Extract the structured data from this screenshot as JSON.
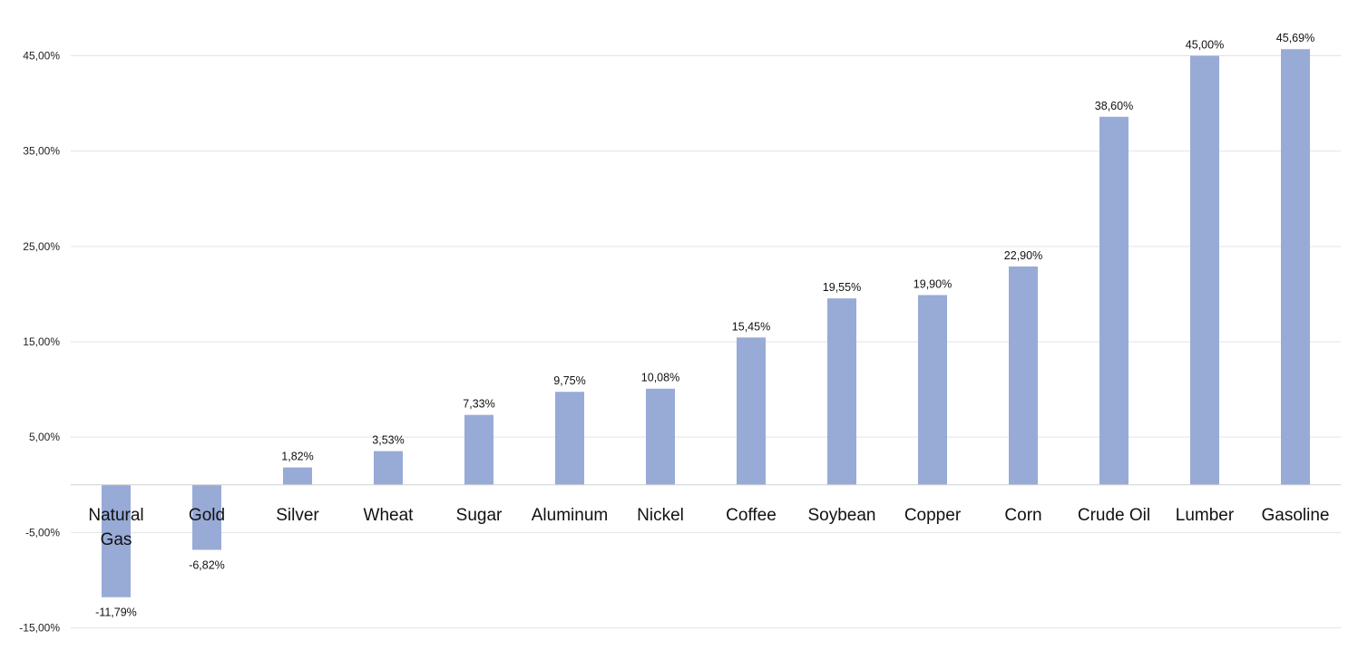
{
  "chart_data": {
    "type": "bar",
    "title": "",
    "xlabel": "",
    "ylabel": "",
    "categories": [
      "Natural Gas",
      "Gold",
      "Silver",
      "Wheat",
      "Sugar",
      "Aluminum",
      "Nickel",
      "Coffee",
      "Soybean",
      "Copper",
      "Corn",
      "Crude Oil",
      "Lumber",
      "Gasoline"
    ],
    "values": [
      -11.79,
      -6.82,
      1.82,
      3.53,
      7.33,
      9.75,
      10.08,
      15.45,
      19.55,
      19.9,
      22.9,
      38.6,
      45.0,
      45.69
    ],
    "data_labels": [
      "-11,79%",
      "-6,82%",
      "1,82%",
      "3,53%",
      "7,33%",
      "9,75%",
      "10,08%",
      "15,45%",
      "19,55%",
      "19,90%",
      "22,90%",
      "38,60%",
      "45,00%",
      "45,69%"
    ],
    "ylim": [
      -15,
      45
    ],
    "y_ticks": [
      -15,
      -5,
      5,
      15,
      25,
      35,
      45
    ],
    "y_tick_labels": [
      "-15,00%",
      "-5,00%",
      "5,00%",
      "15,00%",
      "25,00%",
      "35,00%",
      "45,00%"
    ],
    "grid": true,
    "legend": "none",
    "bar_color": "#98aad6"
  }
}
